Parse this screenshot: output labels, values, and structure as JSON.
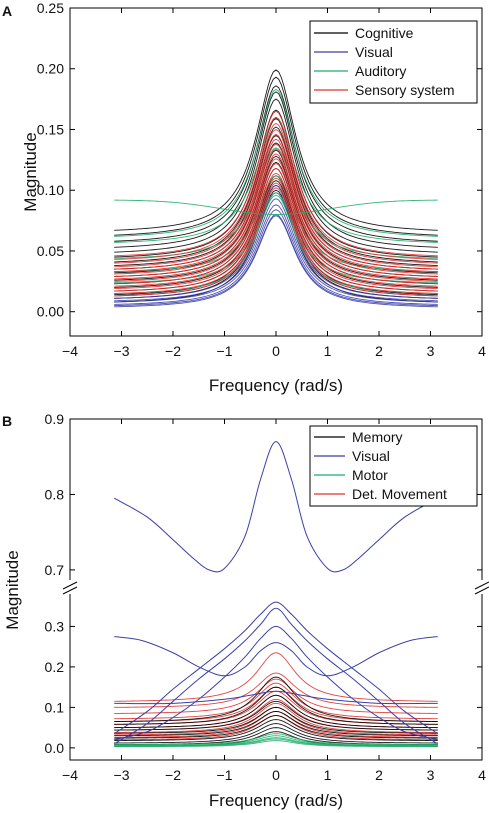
{
  "chart_data": [
    {
      "panel": "A",
      "type": "line",
      "xlabel": "Frequency (rad/s)",
      "ylabel": "Magnitude",
      "xlim": [
        -4,
        4
      ],
      "ylim": [
        -0.02,
        0.25
      ],
      "xticks": [
        -4,
        -3,
        -2,
        -1,
        0,
        1,
        2,
        3,
        4
      ],
      "xtick_labels": [
        "−4",
        "−3",
        "−2",
        "−1",
        "0",
        "1",
        "2",
        "3",
        "4"
      ],
      "yticks": [
        0.0,
        0.05,
        0.1,
        0.15,
        0.2,
        0.25
      ],
      "ytick_labels": [
        "0.00",
        "0.05",
        "0.10",
        "0.15",
        "0.20",
        "0.25"
      ],
      "legend_position": "top-right",
      "grid": false,
      "series": [
        {
          "name": "Cognitive",
          "color": "#000000",
          "peaks": [
            0.199,
            0.193,
            0.186,
            0.181,
            0.175,
            0.166,
            0.159,
            0.152,
            0.145,
            0.139,
            0.133,
            0.128,
            0.123,
            0.118,
            0.112,
            0.108,
            0.104,
            0.1
          ],
          "edges": [
            0.067,
            0.063,
            0.058,
            0.053,
            0.049,
            0.045,
            0.041,
            0.038,
            0.035,
            0.032,
            0.029,
            0.026,
            0.023,
            0.02,
            0.017,
            0.014,
            0.011,
            0.008
          ]
        },
        {
          "name": "Visual",
          "color": "#3b3fa8",
          "peaks": [
            0.104,
            0.098,
            0.093,
            0.088,
            0.084,
            0.08,
            0.079
          ],
          "edges": [
            0.013,
            0.011,
            0.009,
            0.008,
            0.006,
            0.005,
            0.004
          ]
        },
        {
          "name": "Auditory",
          "color": "#1fae6a",
          "peaks": [
            0.183,
            0.16,
            0.135,
            0.112,
            0.098,
            0.096
          ],
          "edges": [
            0.062,
            0.057,
            0.044,
            0.033,
            0.024,
            0.015
          ]
        },
        {
          "name": "Sensory system",
          "color": "#e0302c",
          "peaks": [
            0.165,
            0.16,
            0.155,
            0.15,
            0.146,
            0.142,
            0.138,
            0.134,
            0.13,
            0.126,
            0.122,
            0.118,
            0.114,
            0.11,
            0.106,
            0.102
          ],
          "edges": [
            0.046,
            0.043,
            0.04,
            0.037,
            0.035,
            0.033,
            0.031,
            0.029,
            0.027,
            0.025,
            0.023,
            0.021,
            0.019,
            0.017,
            0.015,
            0.013
          ]
        },
        {
          "name": "Auditory",
          "color": "#1fae6a",
          "shape": "saddle",
          "peaks": [
            0.08
          ],
          "edges": [
            0.092
          ]
        }
      ]
    },
    {
      "panel": "B",
      "type": "line",
      "xlabel": "Frequency (rad/s)",
      "ylabel": "Magnitude",
      "xlim": [
        -4,
        4
      ],
      "broken_axis": true,
      "ylim_lower": [
        -0.03,
        0.39
      ],
      "ylim_upper": [
        0.68,
        0.9
      ],
      "xticks": [
        -4,
        -3,
        -2,
        -1,
        0,
        1,
        2,
        3,
        4
      ],
      "xtick_labels": [
        "−4",
        "−3",
        "−2",
        "−1",
        "0",
        "1",
        "2",
        "3",
        "4"
      ],
      "yticks_lower": [
        0.0,
        0.1,
        0.2,
        0.3
      ],
      "ytick_labels_lower": [
        "0.0",
        "0.1",
        "0.2",
        "0.3"
      ],
      "yticks_upper": [
        0.7,
        0.8,
        0.9
      ],
      "ytick_labels_upper": [
        "0.7",
        "0.8",
        "0.9"
      ],
      "legend_position": "top-right",
      "grid": false,
      "legend": [
        {
          "name": "Memory",
          "color": "#000000"
        },
        {
          "name": "Visual",
          "color": "#3b3fa8"
        },
        {
          "name": "Motor",
          "color": "#1fae6a"
        },
        {
          "name": "Det. Movement",
          "color": "#e0302c"
        }
      ],
      "visual_curves": [
        {
          "x": [
            -3.14,
            -2.5,
            -2.0,
            -1.6,
            -1.3,
            -1.0,
            -0.6,
            -0.3,
            0,
            0.3,
            0.6,
            1.0,
            1.3,
            1.6,
            2.0,
            2.5,
            3.14
          ],
          "y": [
            0.795,
            0.77,
            0.74,
            0.715,
            0.7,
            0.702,
            0.745,
            0.82,
            0.87,
            0.82,
            0.745,
            0.702,
            0.7,
            0.715,
            0.74,
            0.77,
            0.795
          ]
        },
        {
          "x": [
            -3.14,
            -2.6,
            -2.0,
            -1.5,
            -1.0,
            -0.6,
            -0.3,
            0,
            0.3,
            0.6,
            1.0,
            1.5,
            2.0,
            2.6,
            3.14
          ],
          "y": [
            0.275,
            0.265,
            0.235,
            0.2,
            0.178,
            0.2,
            0.24,
            0.26,
            0.24,
            0.2,
            0.178,
            0.2,
            0.235,
            0.265,
            0.275
          ]
        },
        {
          "x": [
            -3.14,
            -2.5,
            -2.0,
            -1.5,
            -1.0,
            -0.6,
            -0.3,
            0,
            0.3,
            0.6,
            1.0,
            1.5,
            2.0,
            2.5,
            3.14
          ],
          "y": [
            0.035,
            0.09,
            0.145,
            0.195,
            0.245,
            0.29,
            0.33,
            0.36,
            0.33,
            0.29,
            0.245,
            0.195,
            0.145,
            0.09,
            0.035
          ]
        },
        {
          "x": [
            -3.14,
            -2.5,
            -2.0,
            -1.5,
            -1.0,
            -0.6,
            -0.3,
            0,
            0.3,
            0.6,
            1.0,
            1.5,
            2.0,
            2.5,
            3.14
          ],
          "y": [
            0.01,
            0.06,
            0.115,
            0.17,
            0.22,
            0.265,
            0.305,
            0.345,
            0.305,
            0.265,
            0.22,
            0.17,
            0.115,
            0.06,
            0.01
          ]
        },
        {
          "x": [
            -3.14,
            -2.5,
            -2.0,
            -1.5,
            -1.0,
            -0.6,
            -0.3,
            0,
            0.3,
            0.6,
            1.0,
            1.5,
            2.0,
            2.5,
            3.14
          ],
          "y": [
            0.02,
            0.04,
            0.075,
            0.12,
            0.175,
            0.225,
            0.27,
            0.3,
            0.27,
            0.225,
            0.175,
            0.12,
            0.075,
            0.04,
            0.02
          ]
        },
        {
          "x": [
            -3.14,
            -2.0,
            -1.0,
            -0.5,
            0,
            0.5,
            1.0,
            2.0,
            3.14
          ],
          "y": [
            0.11,
            0.11,
            0.12,
            0.13,
            0.14,
            0.13,
            0.12,
            0.11,
            0.11
          ]
        }
      ],
      "lorentz_series": [
        {
          "name": "Det. Movement",
          "color": "#e0302c",
          "peaks": [
            0.235,
            0.185,
            0.17,
            0.16,
            0.15,
            0.14,
            0.13,
            0.12,
            0.11,
            0.1,
            0.09,
            0.08
          ],
          "edges": [
            0.115,
            0.1,
            0.085,
            0.072,
            0.065,
            0.058,
            0.05,
            0.044,
            0.038,
            0.032,
            0.026,
            0.02
          ]
        },
        {
          "name": "Memory",
          "color": "#000000",
          "peaks": [
            0.175,
            0.15,
            0.13,
            0.115,
            0.1,
            0.09,
            0.08,
            0.07,
            0.06,
            0.05,
            0.04
          ],
          "edges": [
            0.065,
            0.058,
            0.05,
            0.044,
            0.036,
            0.03,
            0.024,
            0.018,
            0.012,
            0.008,
            0.004
          ]
        },
        {
          "name": "Motor",
          "color": "#1fae6a",
          "peaks": [
            0.035,
            0.03,
            0.025,
            0.022,
            0.018
          ],
          "edges": [
            0.008,
            0.006,
            0.005,
            0.004,
            0.003
          ]
        }
      ]
    }
  ]
}
